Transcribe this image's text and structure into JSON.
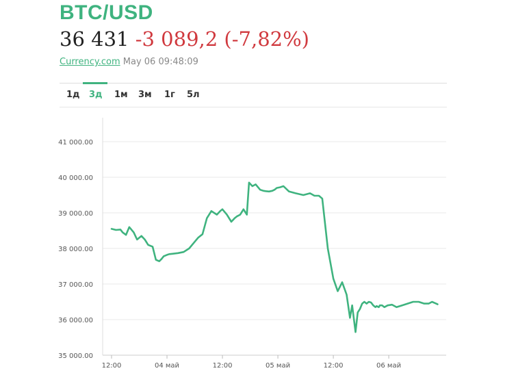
{
  "header": {
    "title": "BTC/USD",
    "price": "36 431",
    "change": "-3 089,2 (-7,82%)",
    "source_link": "Currency.com",
    "timestamp": "May 06 09:48:09"
  },
  "tabs": [
    {
      "label": "1д",
      "active": false
    },
    {
      "label": "3д",
      "active": true
    },
    {
      "label": "1м",
      "active": false
    },
    {
      "label": "3м",
      "active": false
    },
    {
      "label": "1г",
      "active": false
    },
    {
      "label": "5л",
      "active": false
    }
  ],
  "colors": {
    "accent": "#3fb37f",
    "negative": "#d0393e",
    "line": "#3fb37f"
  },
  "chart_data": {
    "type": "line",
    "x_tick_labels": [
      "12:00",
      "04 май",
      "12:00",
      "05 май",
      "12:00",
      "06 май"
    ],
    "x_tick_positions": [
      0,
      0.5,
      1,
      1.5,
      2,
      2.5
    ],
    "xlim": [
      0,
      2.95
    ],
    "y_tick_labels": [
      "35 000.00",
      "36 000.00",
      "37 000.00",
      "38 000.00",
      "39 000.00",
      "40 000.00",
      "41 000.00"
    ],
    "y_ticks": [
      35000,
      36000,
      37000,
      38000,
      39000,
      40000,
      41000
    ],
    "ylim": [
      35000,
      41500
    ],
    "grid": true,
    "series": [
      {
        "x": [
          0.0,
          0.04,
          0.08,
          0.1,
          0.13,
          0.16,
          0.2,
          0.23,
          0.27,
          0.3,
          0.33,
          0.37,
          0.4,
          0.43,
          0.45,
          0.47,
          0.5,
          0.52,
          0.55,
          0.6,
          0.65,
          0.7,
          0.74,
          0.78,
          0.82,
          0.86,
          0.9,
          0.95,
          0.98,
          1.0,
          1.04,
          1.08,
          1.11,
          1.13,
          1.16,
          1.19,
          1.22,
          1.24,
          1.27,
          1.3,
          1.34,
          1.37,
          1.39,
          1.42,
          1.45,
          1.47,
          1.49,
          1.52,
          1.55,
          1.6,
          1.66,
          1.73,
          1.79,
          1.83,
          1.87,
          1.9,
          1.95,
          2.0,
          2.04,
          2.08,
          2.12,
          2.15,
          2.17,
          2.2,
          2.22,
          2.24,
          2.26,
          2.28,
          2.3,
          2.32,
          2.34,
          2.36,
          2.38,
          2.39,
          2.41,
          2.42,
          2.44,
          2.46,
          2.49,
          2.53,
          2.57,
          2.62,
          2.67,
          2.72,
          2.77,
          2.82,
          2.84,
          2.86,
          2.89,
          2.92,
          2.94
        ],
        "y": [
          38550,
          38520,
          38530,
          38450,
          38380,
          38600,
          38450,
          38250,
          38350,
          38250,
          38100,
          38050,
          37680,
          37640,
          37700,
          37780,
          37820,
          37840,
          37850,
          37870,
          37900,
          38000,
          38150,
          38300,
          38400,
          38850,
          39050,
          38950,
          39050,
          39100,
          38950,
          38750,
          38850,
          38900,
          38950,
          39100,
          38950,
          39850,
          39750,
          39800,
          39650,
          39620,
          39610,
          39600,
          39620,
          39650,
          39700,
          39720,
          39750,
          39600,
          39550,
          39500,
          39550,
          39480,
          39480,
          39400,
          38000,
          37150,
          36800,
          37050,
          36700,
          36050,
          36400,
          35650,
          36200,
          36300,
          36450,
          36500,
          36450,
          36500,
          36480,
          36400,
          36350,
          36380,
          36350,
          36400,
          36400,
          36350,
          36400,
          36420,
          36350,
          36400,
          36450,
          36500,
          36500,
          36450,
          36450,
          36450,
          36500,
          36460,
          36431
        ]
      }
    ]
  }
}
